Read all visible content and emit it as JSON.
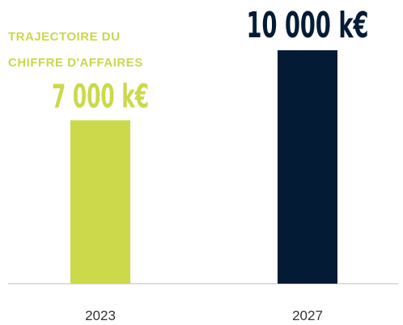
{
  "chart_data": {
    "type": "bar",
    "title": "TRAJECTOIRE DU CHIFFRE D'AFFAIRES",
    "categories": [
      "2023",
      "2027"
    ],
    "values": [
      7000,
      10000
    ],
    "value_labels": [
      "7 000 k€",
      "10 000 k€"
    ],
    "colors": [
      "#cbd94a",
      "#041b35"
    ],
    "ylim": [
      0,
      10000
    ]
  }
}
